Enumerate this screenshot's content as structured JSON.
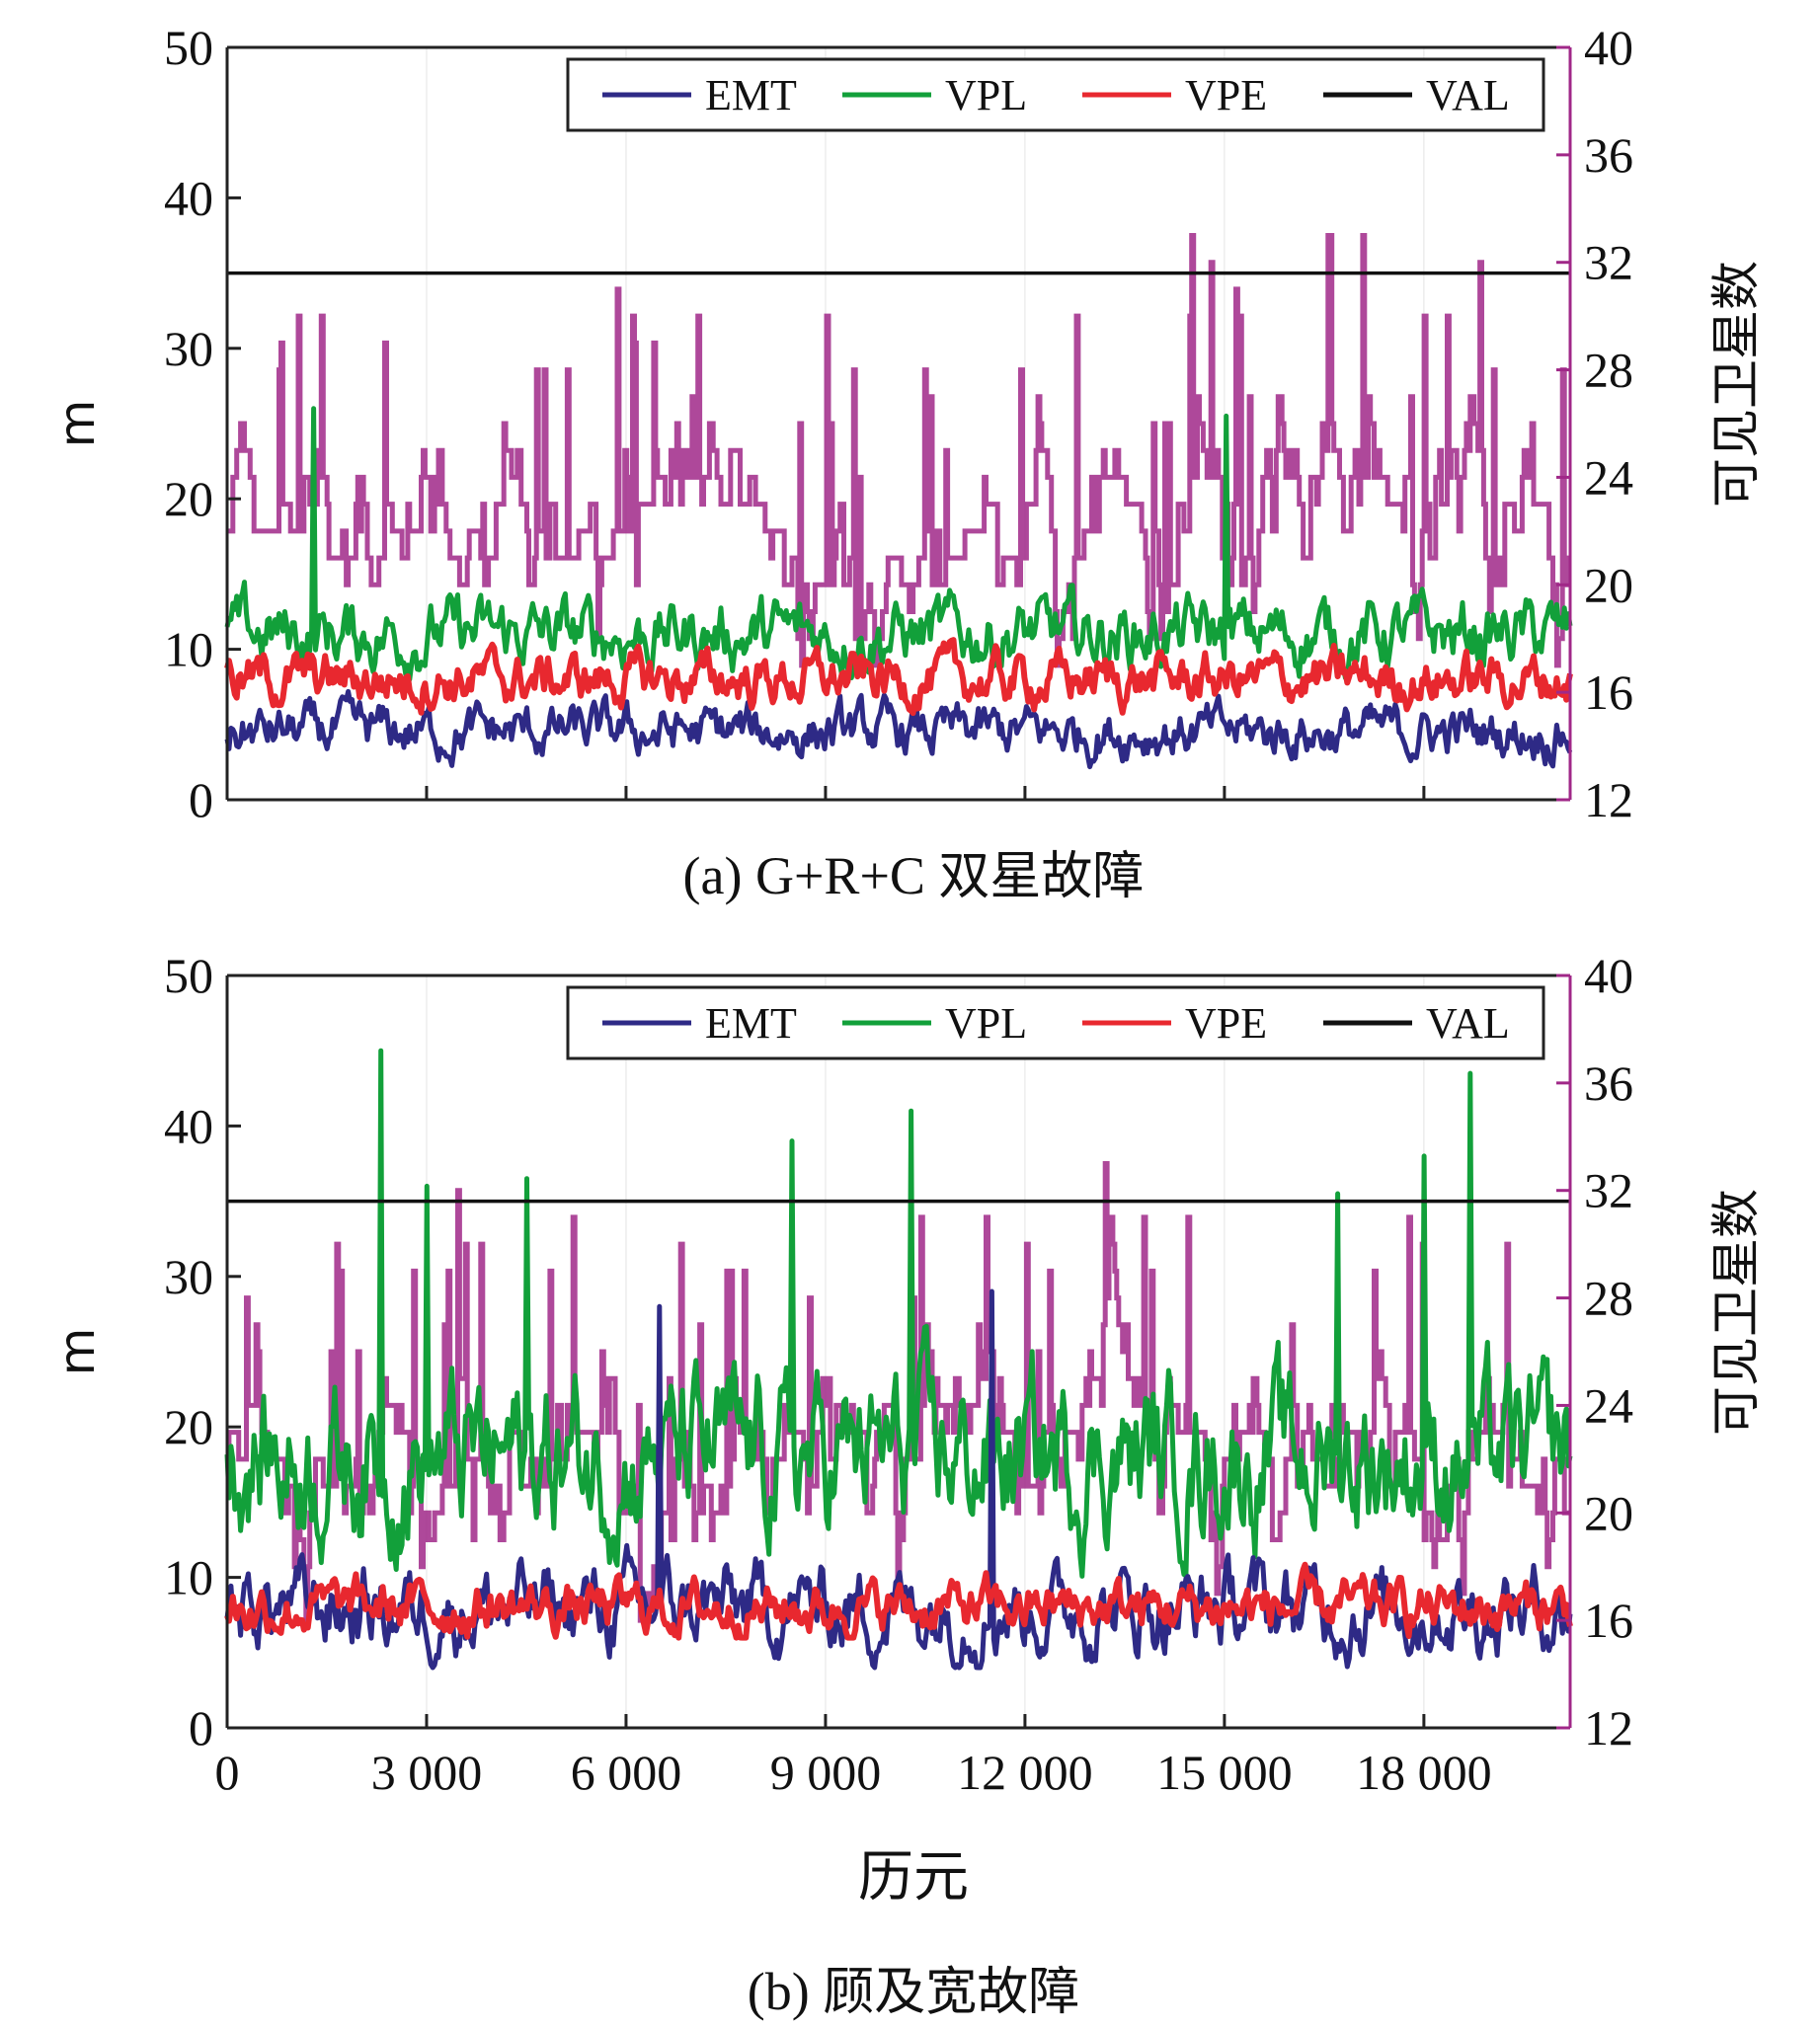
{
  "x_axis": {
    "title": "历元",
    "tick_labels": [
      "0",
      "3 000",
      "6 000",
      "9 000",
      "12 000",
      "15 000",
      "18 000"
    ],
    "tick_values": [
      0,
      3000,
      6000,
      9000,
      12000,
      15000,
      18000
    ]
  },
  "colors": {
    "EMT": "#2e2a86",
    "VPL": "#12a03a",
    "VPE": "#e8282f",
    "VAL": "#111111",
    "satellites": "#a02888",
    "right_axis": "#a02888"
  },
  "chart_data": [
    {
      "type": "line",
      "caption": "(a) G+R+C 双星故障",
      "caption_prefix": "(a) G+R+C",
      "caption_suffix": "双星故障",
      "xlim": [
        0,
        20200
      ],
      "ylabel": "m",
      "ylim": [
        0,
        50
      ],
      "y_ticks": [
        0,
        10,
        20,
        30,
        40,
        50
      ],
      "y2label": "可见卫星数",
      "y2lim": [
        12,
        40
      ],
      "y2_ticks": [
        12,
        16,
        20,
        24,
        28,
        32,
        36,
        40
      ],
      "legend": [
        "EMT",
        "VPL",
        "VPE",
        "VAL"
      ],
      "legend_position": "top-right",
      "series": [
        {
          "name": "EMT",
          "axis": "left",
          "mean": 4.5,
          "range": [
            2,
            7.5
          ]
        },
        {
          "name": "VPL",
          "axis": "left",
          "mean": 11,
          "range": [
            7,
            26
          ]
        },
        {
          "name": "VPE",
          "axis": "left",
          "mean": 8,
          "range": [
            5,
            12.5
          ]
        },
        {
          "name": "VAL",
          "axis": "left",
          "constant": 35
        },
        {
          "name": "可见卫星数",
          "axis": "right",
          "mean": 22,
          "range": [
            16,
            33
          ]
        }
      ]
    },
    {
      "type": "line",
      "caption": "(b) 顾及宽故障",
      "caption_prefix": "(b)",
      "caption_suffix": "顾及宽故障",
      "xlim": [
        0,
        20200
      ],
      "ylabel": "m",
      "ylim": [
        0,
        50
      ],
      "y_ticks": [
        0,
        10,
        20,
        30,
        40,
        50
      ],
      "y2label": "可见卫星数",
      "y2lim": [
        12,
        40
      ],
      "y2_ticks": [
        12,
        16,
        20,
        24,
        28,
        32,
        36,
        40
      ],
      "legend": [
        "EMT",
        "VPL",
        "VPE",
        "VAL"
      ],
      "legend_position": "top-right",
      "series": [
        {
          "name": "EMT",
          "axis": "left",
          "mean": 8,
          "range": [
            4,
            28
          ]
        },
        {
          "name": "VPL",
          "axis": "left",
          "mean": 18,
          "range": [
            10,
            45
          ]
        },
        {
          "name": "VPE",
          "axis": "left",
          "mean": 8,
          "range": [
            6,
            12
          ]
        },
        {
          "name": "VAL",
          "axis": "left",
          "constant": 35
        },
        {
          "name": "可见卫星数",
          "axis": "right",
          "mean": 22,
          "range": [
            16,
            33
          ]
        }
      ],
      "peaks": {
        "VPL": [
          [
            2300,
            45
          ],
          [
            3000,
            36
          ],
          [
            4500,
            36.5
          ],
          [
            8500,
            39
          ],
          [
            10300,
            41
          ],
          [
            16700,
            35.5
          ],
          [
            18000,
            38
          ],
          [
            18700,
            43.5
          ]
        ],
        "EMT": [
          [
            6500,
            28
          ],
          [
            11500,
            29
          ]
        ]
      }
    }
  ]
}
